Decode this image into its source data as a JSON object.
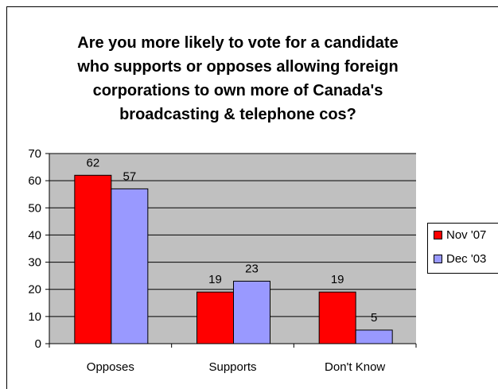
{
  "chart_data": {
    "type": "bar",
    "title": "Are you more likely to vote for a candidate who supports or opposes allowing foreign corporations to own more of Canada's broadcasting & telephone cos?",
    "title_lines": [
      "Are you more likely to vote for a candidate",
      "who supports or opposes allowing foreign",
      "corporations to own more of Canada's",
      "broadcasting & telephone cos?"
    ],
    "categories": [
      "Opposes",
      "Supports",
      "Don't Know"
    ],
    "series": [
      {
        "name": "Nov '07",
        "values": [
          62,
          19,
          19
        ],
        "color": "#ff0000"
      },
      {
        "name": "Dec '03",
        "values": [
          57,
          23,
          5
        ],
        "color": "#9999ff"
      }
    ],
    "ylim": [
      0,
      70
    ],
    "yticks": [
      0,
      10,
      20,
      30,
      40,
      50,
      60,
      70
    ],
    "xlabel": "",
    "ylabel": "",
    "grid": true,
    "legend_position": "right",
    "plot_background": "#c0c0c0"
  }
}
